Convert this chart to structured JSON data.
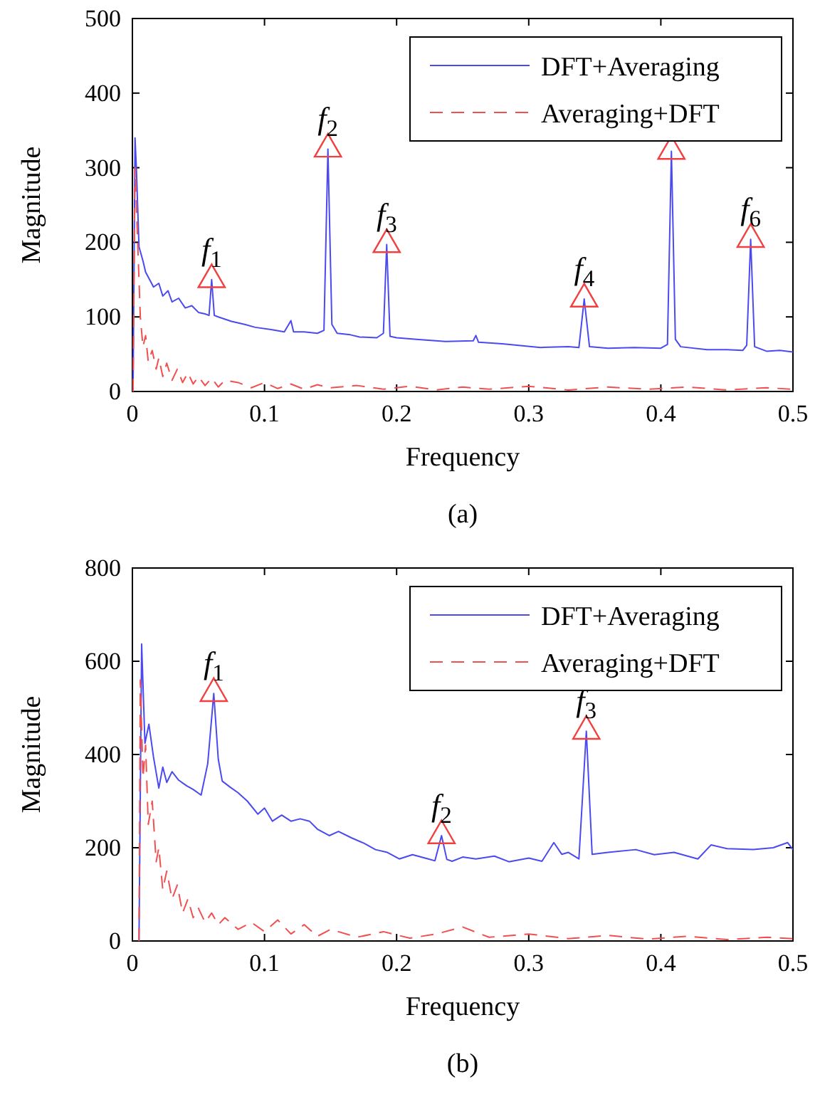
{
  "chart_data": [
    {
      "type": "line",
      "xlabel": "Frequency",
      "ylabel": "Magnitude",
      "xlim": [
        0,
        0.5
      ],
      "ylim": [
        0,
        500
      ],
      "xticks": [
        0,
        0.1,
        0.2,
        0.3,
        0.4,
        0.5
      ],
      "yticks": [
        0,
        100,
        200,
        300,
        400,
        500
      ],
      "legend": "top right",
      "annotations": [
        "(a)",
        {
          "text": "f$_{1}$",
          "x": 0.06,
          "y": 150
        },
        {
          "text": "f$_{2}$",
          "x": 0.148,
          "y": 325
        },
        {
          "text": "f$_{3}$",
          "x": 0.1925,
          "y": 197
        },
        {
          "text": "f$_{4}$",
          "x": 0.342,
          "y": 124
        },
        {
          "text": "f$_{6}$",
          "x": 0.468,
          "y": 204
        }
      ],
      "series": [
        {
          "name": "DFT+Averaging",
          "type": "line",
          "line_style": "solid",
          "color": "#4a4af0",
          "x": [
            0.0005,
            0.002,
            0.003,
            0.005,
            0.008,
            0.01,
            0.013,
            0.016,
            0.02,
            0.023,
            0.027,
            0.03,
            0.035,
            0.04,
            0.045,
            0.05,
            0.055,
            0.058,
            0.06,
            0.062,
            0.065,
            0.075,
            0.085,
            0.093,
            0.105,
            0.115,
            0.12,
            0.122,
            0.13,
            0.14,
            0.145,
            0.148,
            0.151,
            0.155,
            0.165,
            0.172,
            0.185,
            0.19,
            0.1925,
            0.195,
            0.2,
            0.215,
            0.237,
            0.258,
            0.26,
            0.262,
            0.28,
            0.309,
            0.33,
            0.338,
            0.342,
            0.346,
            0.36,
            0.38,
            0.4,
            0.405,
            0.408,
            0.411,
            0.415,
            0.435,
            0.45,
            0.462,
            0.465,
            0.468,
            0.471,
            0.48,
            0.49,
            0.5
          ],
          "values": [
            0,
            340,
            300,
            194,
            175,
            160,
            150,
            140,
            145,
            128,
            135,
            120,
            125,
            112,
            115,
            106,
            104,
            102,
            150,
            102,
            100,
            94,
            90,
            86,
            83,
            80,
            95,
            80,
            80,
            78,
            82,
            325,
            90,
            78,
            76,
            73,
            72,
            78,
            197,
            74,
            72,
            70,
            67,
            68,
            75,
            66,
            64,
            59,
            60,
            59,
            124,
            60,
            58,
            59,
            58,
            63,
            322,
            70,
            60,
            56,
            56,
            55,
            62,
            204,
            60,
            54,
            55,
            53
          ]
        },
        {
          "name": "Averaging+DFT",
          "type": "line",
          "line_style": "dashed",
          "color": "#f05050",
          "x": [
            0.0005,
            0.002,
            0.004,
            0.006,
            0.008,
            0.01,
            0.012,
            0.015,
            0.018,
            0.02,
            0.023,
            0.026,
            0.03,
            0.034,
            0.038,
            0.042,
            0.046,
            0.05,
            0.055,
            0.06,
            0.065,
            0.07,
            0.08,
            0.09,
            0.1,
            0.11,
            0.12,
            0.13,
            0.14,
            0.15,
            0.17,
            0.19,
            0.21,
            0.23,
            0.25,
            0.27,
            0.3,
            0.33,
            0.36,
            0.39,
            0.42,
            0.45,
            0.48,
            0.5
          ],
          "values": [
            0,
            300,
            200,
            100,
            60,
            75,
            40,
            55,
            30,
            45,
            20,
            38,
            15,
            30,
            12,
            25,
            10,
            20,
            8,
            18,
            6,
            15,
            12,
            5,
            12,
            4,
            10,
            3,
            9,
            5,
            8,
            3,
            7,
            2,
            6,
            3,
            7,
            2,
            6,
            3,
            6,
            2,
            5,
            3
          ]
        },
        {
          "type": "scatter",
          "marker": "triangle",
          "color": "#f04040",
          "x": [
            0.06,
            0.148,
            0.1925,
            0.342,
            0.408,
            0.468
          ],
          "values": [
            150,
            325,
            197,
            124,
            322,
            204
          ]
        }
      ]
    },
    {
      "type": "line",
      "xlabel": "Frequency",
      "ylabel": "Magnitude",
      "xlim": [
        0,
        0.5
      ],
      "ylim": [
        0,
        800
      ],
      "xticks": [
        0,
        0.1,
        0.2,
        0.3,
        0.4,
        0.5
      ],
      "yticks": [
        0,
        200,
        400,
        600,
        800
      ],
      "legend": "top right",
      "annotations": [
        "(b)",
        {
          "text": "f$_{1}$",
          "x": 0.0616,
          "y": 531
        },
        {
          "text": "f$_{2}$",
          "x": 0.234,
          "y": 226
        },
        {
          "text": "f$_{3}$",
          "x": 0.3436,
          "y": 450
        }
      ],
      "series": [
        {
          "name": "DFT+Averaging",
          "type": "line",
          "line_style": "solid",
          "color": "#4a4af0",
          "x": [
            0.005,
            0.007,
            0.0095,
            0.0125,
            0.016,
            0.02,
            0.023,
            0.026,
            0.03,
            0.035,
            0.041,
            0.046,
            0.052,
            0.057,
            0.0616,
            0.065,
            0.068,
            0.074,
            0.08,
            0.087,
            0.095,
            0.1,
            0.106,
            0.113,
            0.12,
            0.127,
            0.134,
            0.14,
            0.149,
            0.156,
            0.166,
            0.175,
            0.184,
            0.193,
            0.202,
            0.212,
            0.224,
            0.229,
            0.234,
            0.238,
            0.242,
            0.25,
            0.26,
            0.274,
            0.285,
            0.3,
            0.31,
            0.319,
            0.325,
            0.33,
            0.338,
            0.3436,
            0.348,
            0.36,
            0.381,
            0.395,
            0.41,
            0.428,
            0.438,
            0.45,
            0.47,
            0.485,
            0.496,
            0.5
          ],
          "values": [
            0,
            637,
            424,
            465,
            394,
            328,
            373,
            340,
            363,
            345,
            333,
            325,
            313,
            380,
            531,
            390,
            343,
            330,
            318,
            300,
            272,
            285,
            257,
            270,
            257,
            262,
            257,
            240,
            226,
            235,
            221,
            210,
            196,
            190,
            176,
            185,
            176,
            172,
            226,
            175,
            171,
            180,
            176,
            182,
            170,
            178,
            171,
            211,
            186,
            190,
            176,
            450,
            186,
            190,
            196,
            185,
            190,
            176,
            206,
            198,
            196,
            200,
            211,
            196
          ]
        },
        {
          "name": "Averaging+DFT",
          "type": "line",
          "line_style": "dashed",
          "color": "#f05050",
          "x": [
            0.005,
            0.006,
            0.008,
            0.01,
            0.012,
            0.015,
            0.018,
            0.02,
            0.023,
            0.026,
            0.03,
            0.034,
            0.038,
            0.042,
            0.046,
            0.05,
            0.055,
            0.06,
            0.065,
            0.07,
            0.08,
            0.09,
            0.1,
            0.11,
            0.12,
            0.13,
            0.14,
            0.15,
            0.17,
            0.19,
            0.21,
            0.23,
            0.25,
            0.27,
            0.3,
            0.33,
            0.36,
            0.39,
            0.42,
            0.45,
            0.48,
            0.5
          ],
          "values": [
            0,
            560,
            350,
            420,
            250,
            300,
            170,
            200,
            110,
            150,
            90,
            120,
            60,
            90,
            50,
            70,
            40,
            60,
            35,
            50,
            25,
            40,
            20,
            45,
            15,
            35,
            10,
            25,
            8,
            20,
            6,
            15,
            30,
            8,
            15,
            5,
            12,
            4,
            10,
            3,
            8,
            5
          ]
        },
        {
          "type": "scatter",
          "marker": "triangle",
          "color": "#f04040",
          "x": [
            0.0616,
            0.234,
            0.3436
          ],
          "values": [
            531,
            226,
            450
          ]
        }
      ]
    }
  ]
}
